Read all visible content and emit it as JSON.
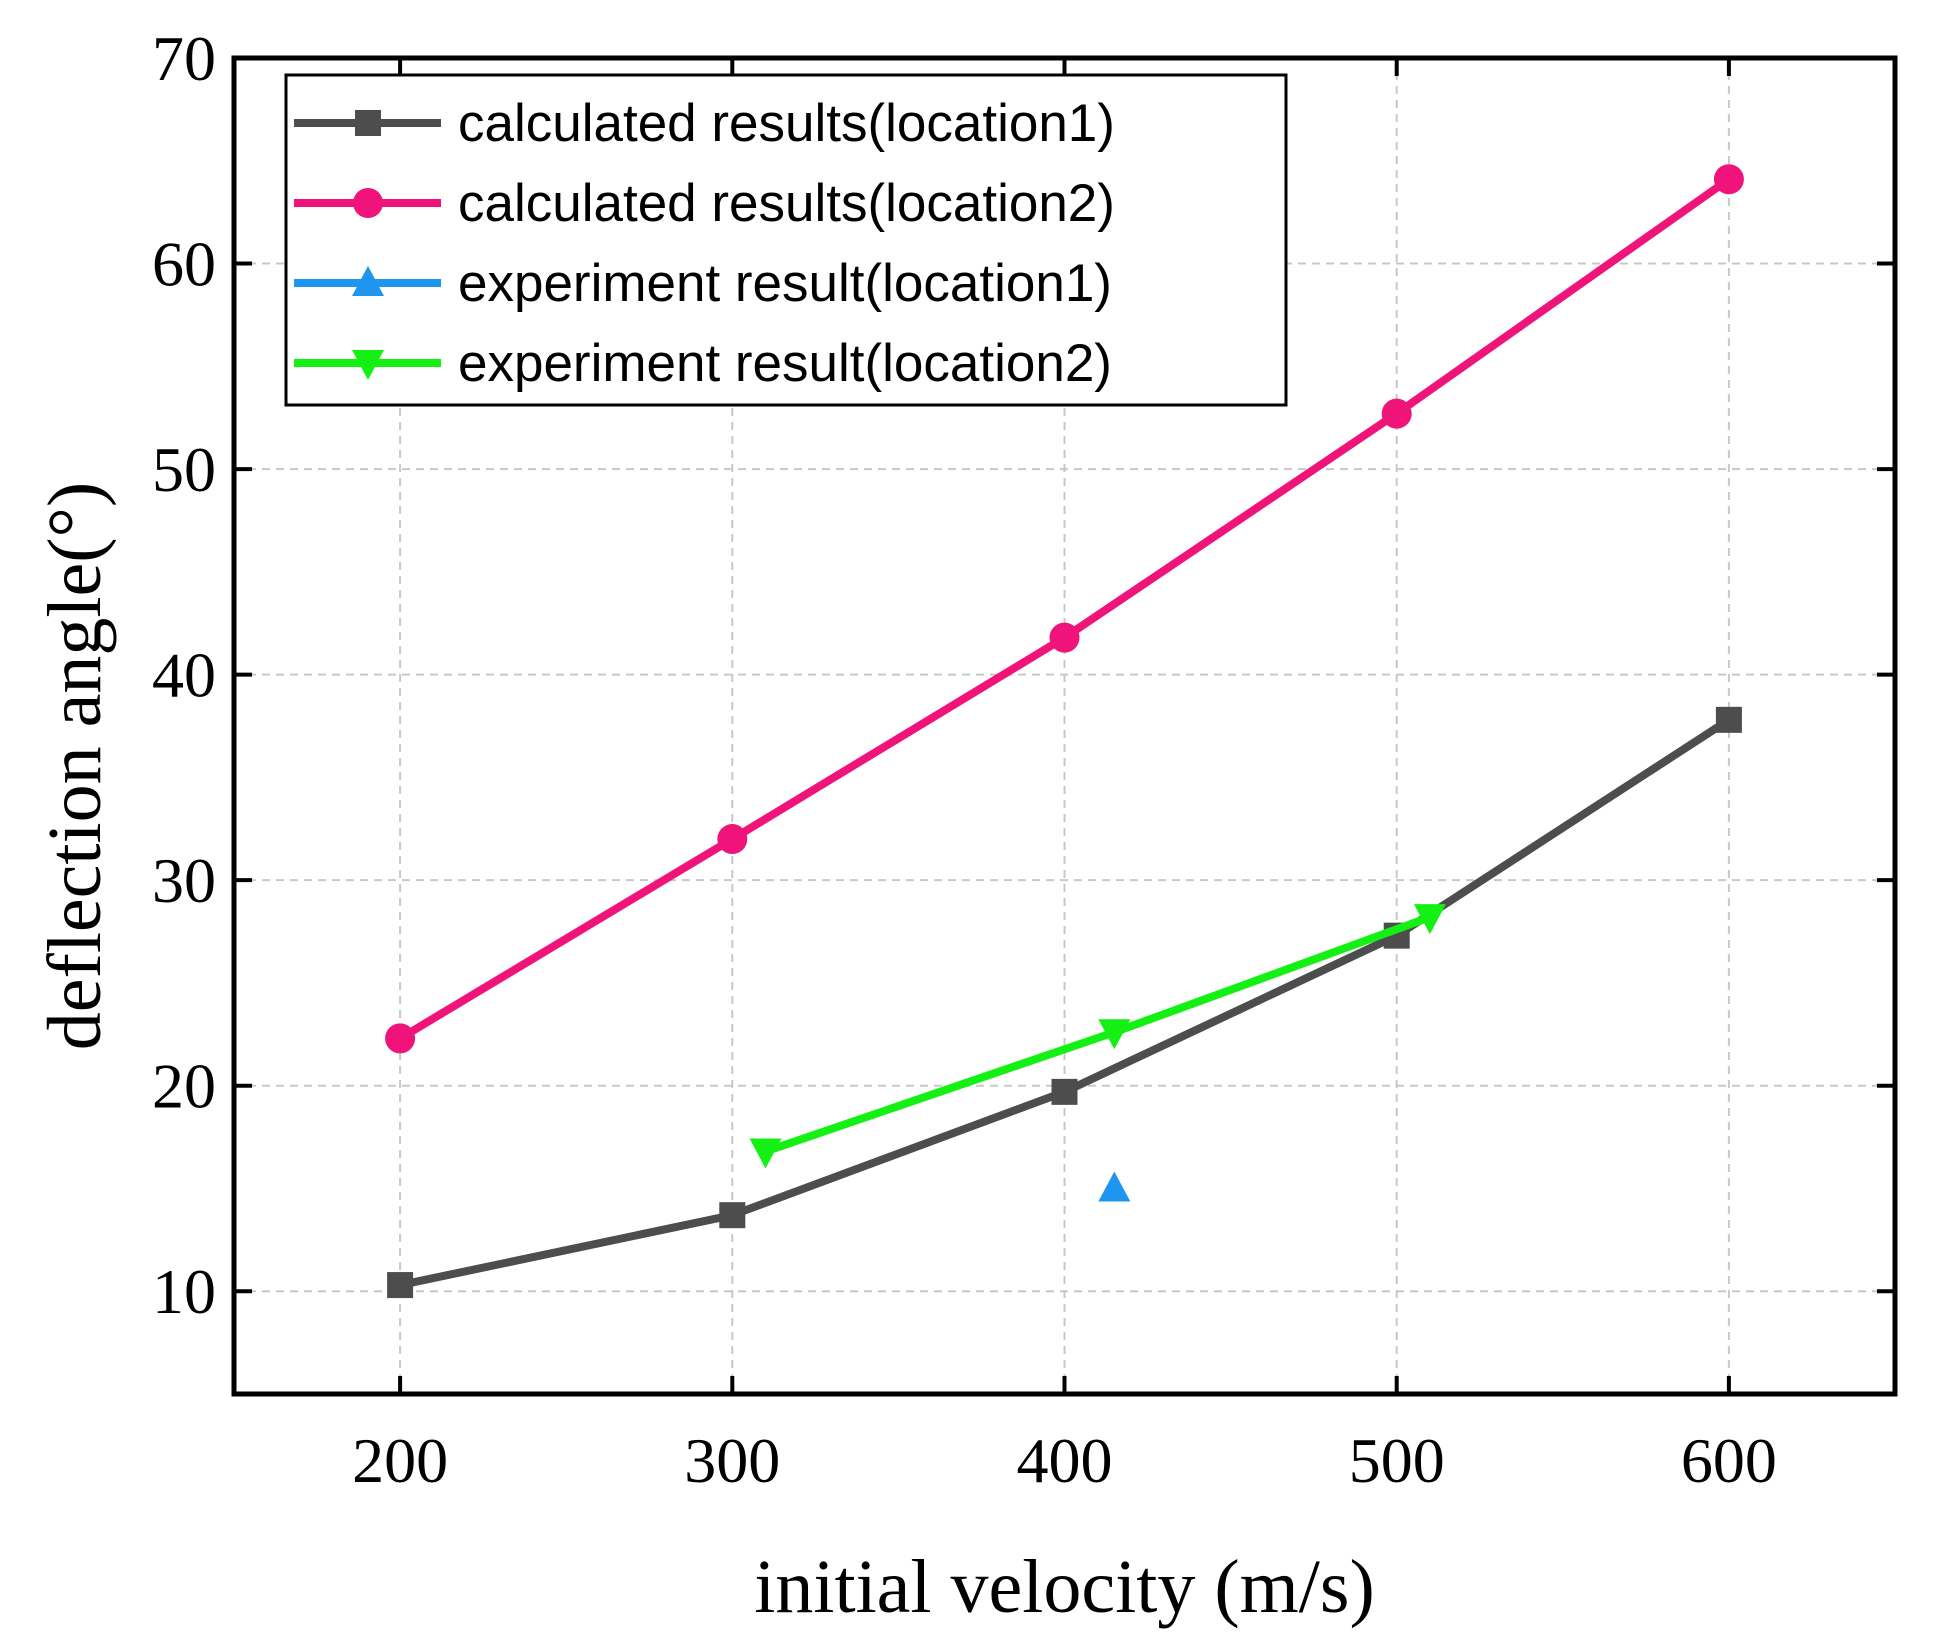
{
  "chart_data": {
    "type": "line",
    "title": "",
    "xlabel": "initial velocity (m/s)",
    "ylabel": "deflection angle(°)",
    "xlim": [
      150,
      650
    ],
    "ylim": [
      5,
      70
    ],
    "xticks": [
      200,
      300,
      400,
      500,
      600
    ],
    "yticks": [
      10,
      20,
      30,
      40,
      50,
      60,
      70
    ],
    "grid": true,
    "legend_position": "top-left",
    "series": [
      {
        "name": "calculated results(location1)",
        "color": "#4d4d4d",
        "marker": "square",
        "x": [
          200,
          300,
          400,
          500,
          600
        ],
        "y": [
          10.3,
          13.7,
          19.7,
          27.3,
          37.8
        ]
      },
      {
        "name": "calculated results(location2)",
        "color": "#f0147a",
        "marker": "circle",
        "x": [
          200,
          300,
          400,
          500,
          600
        ],
        "y": [
          22.3,
          32.0,
          41.8,
          52.7,
          64.1
        ]
      },
      {
        "name": "experiment result(location1)",
        "color": "#1e96f0",
        "marker": "triangle-up",
        "x": [
          415
        ],
        "y": [
          15.0
        ]
      },
      {
        "name": "experiment result(location2)",
        "color": "#14f014",
        "marker": "triangle-down",
        "x": [
          310,
          415,
          510
        ],
        "y": [
          16.8,
          22.6,
          28.2
        ]
      }
    ]
  }
}
